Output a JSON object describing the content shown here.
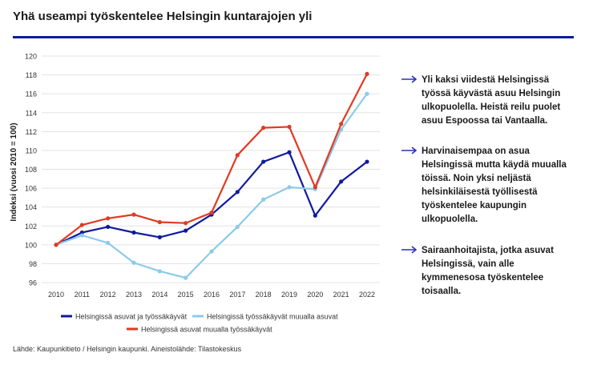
{
  "title": "Yhä useampi työskentelee Helsingin kuntarajojen yli",
  "source": "Lähde: Kaupunkitieto / Helsingin kaupunki. Aineistolähde: Tilastokeskus",
  "notes": [
    "Yli kaksi viidestä Helsingissä työssä käyvästä asuu Helsingin ulkopuolella. Heistä reilu puolet asuu Espoossa tai Vantaalla.",
    "Harvinaisempaa on asua Helsingissä mutta käydä muualla töissä. Noin yksi neljästä helsinkiläisestä työllisestä työskentelee kaupungin ulkopuolella.",
    "Sairaanhoitajista, jotka asuvat Helsingissä, vain alle kymmenesosa työskentelee toisaalla."
  ],
  "colors": {
    "accent": "#0a1f8f",
    "arrow": "#2d2fbf"
  },
  "chart_data": {
    "type": "line",
    "title": "",
    "xlabel": "",
    "ylabel": "Indeksi (vuosi 2010 = 100)",
    "x": [
      2010,
      2011,
      2012,
      2013,
      2014,
      2015,
      2016,
      2017,
      2018,
      2019,
      2020,
      2021,
      2022
    ],
    "ylim": [
      96,
      120
    ],
    "yticks": [
      96,
      98,
      100,
      102,
      104,
      106,
      108,
      110,
      112,
      114,
      116,
      118,
      120
    ],
    "grid": true,
    "legend": "bottom",
    "series": [
      {
        "name": "Helsingissä asuvat ja työssäkäyvät",
        "color": "#101a9e",
        "values": [
          100,
          101.3,
          101.9,
          101.3,
          100.8,
          101.5,
          103.2,
          105.6,
          108.8,
          109.8,
          103.1,
          106.7,
          108.8
        ]
      },
      {
        "name": "Helsingissä työssäkäyvät muualla asuvat",
        "color": "#8ccbe8",
        "values": [
          100,
          101,
          100.2,
          98.1,
          97.2,
          96.5,
          99.3,
          101.9,
          104.8,
          106.1,
          105.9,
          112.2,
          116
        ]
      },
      {
        "name": "Helsingissä asuvat muualla työssäkäyvät",
        "color": "#e03a22",
        "values": [
          100,
          102.1,
          102.8,
          103.2,
          102.4,
          102.3,
          103.4,
          109.5,
          112.4,
          112.5,
          106.1,
          112.8,
          118.1
        ]
      }
    ]
  }
}
